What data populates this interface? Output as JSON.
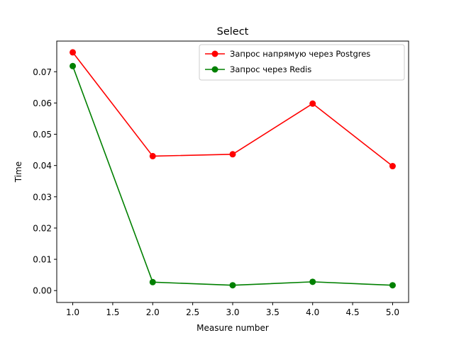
{
  "chart_data": {
    "type": "line",
    "title": "Select",
    "xlabel": "Measure number",
    "ylabel": "Time",
    "xlim": [
      0.8,
      5.2
    ],
    "ylim": [
      -0.0038,
      0.0798
    ],
    "x_ticks": [
      "1.0",
      "1.5",
      "2.0",
      "2.5",
      "3.0",
      "3.5",
      "4.0",
      "4.5",
      "5.0"
    ],
    "y_ticks": [
      "0.00",
      "0.01",
      "0.02",
      "0.03",
      "0.04",
      "0.05",
      "0.06",
      "0.07"
    ],
    "grid": false,
    "legend_position": "upper right",
    "x": [
      1,
      2,
      3,
      4,
      5
    ],
    "series": [
      {
        "name": "Запрос напрямую через Postgres",
        "color": "#ff0000",
        "marker": "circle",
        "values": [
          0.0762,
          0.043,
          0.0436,
          0.0598,
          0.0398
        ]
      },
      {
        "name": "Запрос через Redis",
        "color": "#008000",
        "marker": "circle",
        "values": [
          0.0718,
          0.0027,
          0.0017,
          0.0028,
          0.0017
        ]
      }
    ]
  }
}
